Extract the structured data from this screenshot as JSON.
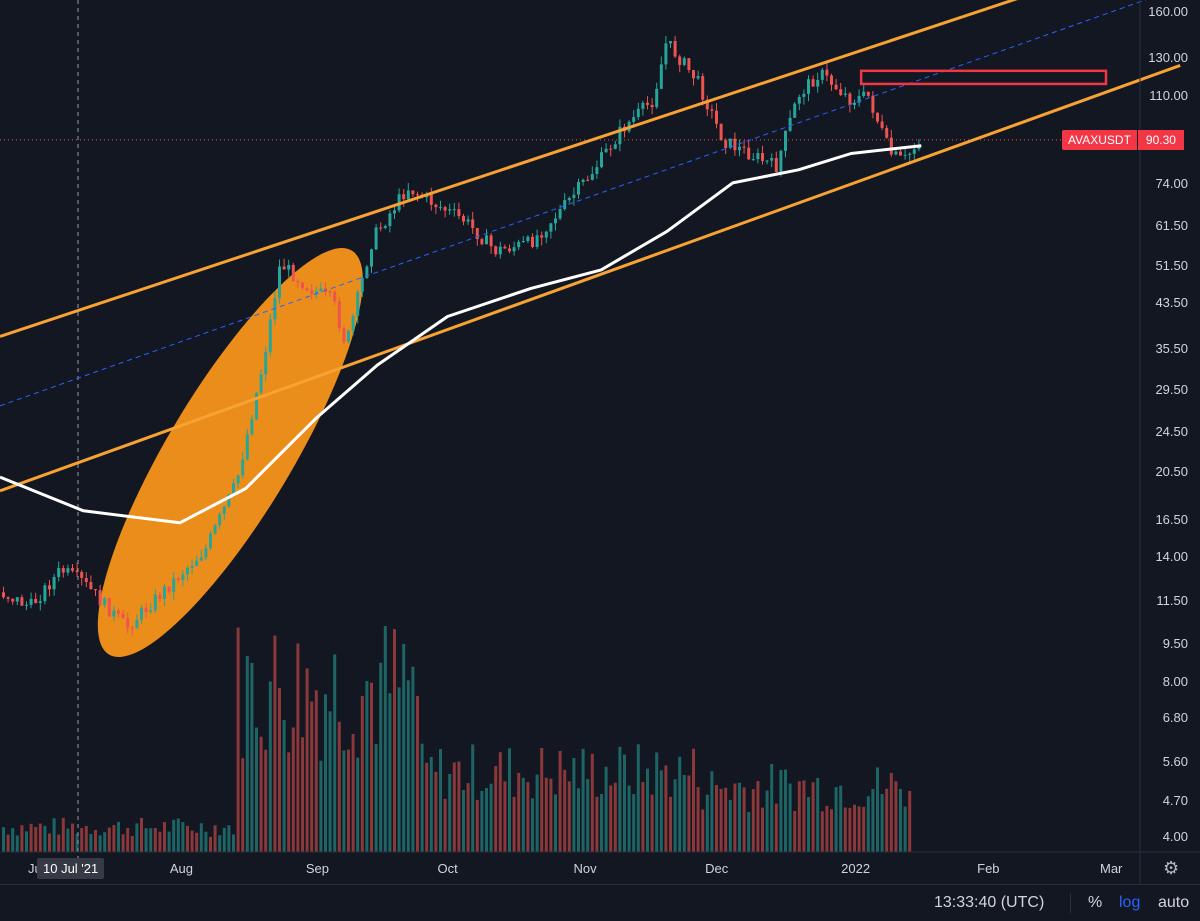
{
  "symbol": "AVAXUSDT",
  "last_price": "90.30",
  "crosshair_date": "10 Jul '21",
  "clock": "13:33:40 (UTC)",
  "scale_buttons": {
    "percent": "%",
    "log": "log",
    "auto": "auto"
  },
  "settings_icon": "gear-icon",
  "colors": {
    "background": "#131722",
    "up": "#26a69a",
    "down": "#ef5350",
    "channel": "#f7a233",
    "ellipse": "#f7931a",
    "moving_average": "#ffffff",
    "midline": "#2962ff",
    "resistance_box": "#f23645",
    "accent_log": "#2962ff"
  },
  "chart_data": {
    "type": "candlestick",
    "scale": "log",
    "ylim": [
      3.5,
      170
    ],
    "price_ticks": [
      "160.00",
      "130.00",
      "110.00",
      "90.30",
      "74.00",
      "61.50",
      "51.50",
      "43.50",
      "35.50",
      "29.50",
      "24.50",
      "20.50",
      "16.50",
      "14.00",
      "11.50",
      "9.50",
      "8.00",
      "6.80",
      "5.60",
      "4.70",
      "4.00"
    ],
    "time_ticks": [
      "Jul",
      "10 Jul '21",
      "Aug",
      "Sep",
      "Oct",
      "Nov",
      "Dec",
      "2022",
      "Feb",
      "Mar"
    ],
    "close_path": [
      [
        "2021-06-21",
        12.0
      ],
      [
        "2021-06-28",
        11.2
      ],
      [
        "2021-07-05",
        13.2
      ],
      [
        "2021-07-10",
        12.5
      ],
      [
        "2021-07-20",
        10.2
      ],
      [
        "2021-07-30",
        12.4
      ],
      [
        "2021-08-07",
        14.5
      ],
      [
        "2021-08-14",
        19.5
      ],
      [
        "2021-08-20",
        33.0
      ],
      [
        "2021-08-24",
        52.0
      ],
      [
        "2021-08-30",
        47.0
      ],
      [
        "2021-09-05",
        44.0
      ],
      [
        "2021-09-08",
        36.0
      ],
      [
        "2021-09-14",
        58.0
      ],
      [
        "2021-09-22",
        73.0
      ],
      [
        "2021-09-28",
        68.0
      ],
      [
        "2021-10-05",
        63.0
      ],
      [
        "2021-10-12",
        55.0
      ],
      [
        "2021-10-20",
        57.0
      ],
      [
        "2021-10-27",
        66.0
      ],
      [
        "2021-11-03",
        78.0
      ],
      [
        "2021-11-10",
        95.0
      ],
      [
        "2021-11-17",
        108.0
      ],
      [
        "2021-11-20",
        140.0
      ],
      [
        "2021-11-27",
        118.0
      ],
      [
        "2021-12-03",
        90.0
      ],
      [
        "2021-12-10",
        84.0
      ],
      [
        "2021-12-15",
        80.0
      ],
      [
        "2021-12-20",
        110.0
      ],
      [
        "2021-12-25",
        122.0
      ],
      [
        "2022-01-01",
        108.0
      ],
      [
        "2022-01-05",
        110.0
      ],
      [
        "2022-01-10",
        85.0
      ],
      [
        "2022-01-13",
        82.0
      ],
      [
        "2022-01-17",
        90.3
      ]
    ],
    "moving_average": [
      [
        "2021-06-21",
        20.0
      ],
      [
        "2021-07-10",
        17.2
      ],
      [
        "2021-08-01",
        16.3
      ],
      [
        "2021-08-16",
        19.0
      ],
      [
        "2021-09-01",
        26.0
      ],
      [
        "2021-09-15",
        33.0
      ],
      [
        "2021-10-01",
        41.0
      ],
      [
        "2021-10-20",
        46.5
      ],
      [
        "2021-11-05",
        50.5
      ],
      [
        "2021-11-20",
        60.0
      ],
      [
        "2021-12-05",
        74.5
      ],
      [
        "2021-12-20",
        79.0
      ],
      [
        "2022-01-01",
        85.0
      ],
      [
        "2022-01-17",
        88.0
      ]
    ],
    "channel_upper": [
      [
        "2021-06-21",
        37.5
      ],
      [
        "2022-02-08",
        170.0
      ]
    ],
    "channel_lower": [
      [
        "2021-06-21",
        18.8
      ],
      [
        "2022-03-17",
        126.0
      ]
    ],
    "channel_mid": [
      [
        "2021-06-21",
        27.5
      ],
      [
        "2022-03-10",
        170.0
      ]
    ],
    "resistance_zone": {
      "from": "2022-01-01",
      "to": "2022-03-01",
      "low": 116,
      "high": 123
    },
    "ellipse_region": {
      "from": "2021-07-17",
      "to": "2021-09-08",
      "low": 9.4,
      "high": 53.0
    },
    "volume_relative": "shown as bars at bottom, peak around late August / September 2021"
  }
}
